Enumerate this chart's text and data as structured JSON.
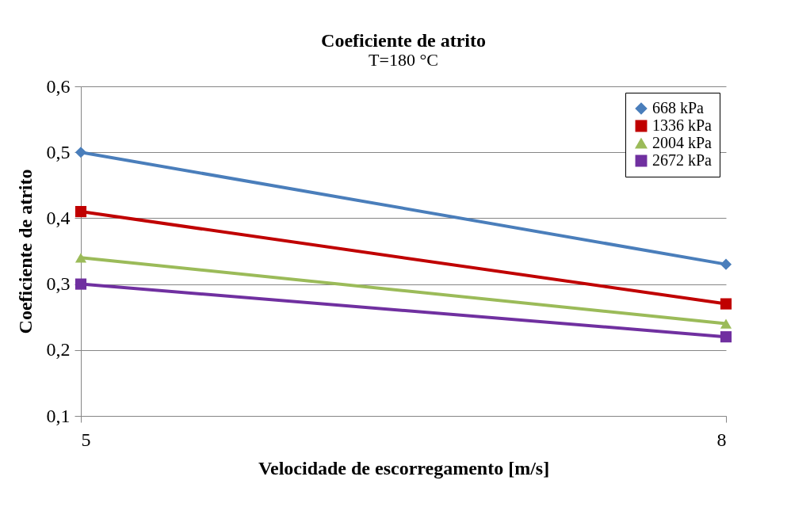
{
  "chart_data": {
    "type": "line",
    "title": "Coeficiente de atrito",
    "subtitle": "T=180 °C",
    "xlabel": "Velocidade de escorregamento [m/s]",
    "ylabel": "Coeficiente de atrito",
    "x": [
      5,
      8
    ],
    "series": [
      {
        "name": "668 kPa",
        "color": "#4a7ebb",
        "marker": "diamond",
        "values": [
          0.5,
          0.33
        ]
      },
      {
        "name": "1336 kPa",
        "color": "#c00000",
        "marker": "square",
        "values": [
          0.41,
          0.27
        ]
      },
      {
        "name": "2004 kPa",
        "color": "#9bbb59",
        "marker": "triangle",
        "values": [
          0.34,
          0.24
        ]
      },
      {
        "name": "2672 kPa",
        "color": "#7030a0",
        "marker": "square",
        "values": [
          0.3,
          0.22
        ]
      }
    ],
    "xlim": [
      5,
      8
    ],
    "xticks": [
      5,
      8
    ],
    "ylim": [
      0.1,
      0.6
    ],
    "yticks": [
      {
        "value": 0.1,
        "label": "0,1"
      },
      {
        "value": 0.2,
        "label": "0,2"
      },
      {
        "value": 0.3,
        "label": "0,3"
      },
      {
        "value": 0.4,
        "label": "0,4"
      },
      {
        "value": 0.5,
        "label": "0,5"
      },
      {
        "value": 0.6,
        "label": "0,6"
      }
    ],
    "grid": "y",
    "legend": "top right",
    "line_style": "solid"
  }
}
